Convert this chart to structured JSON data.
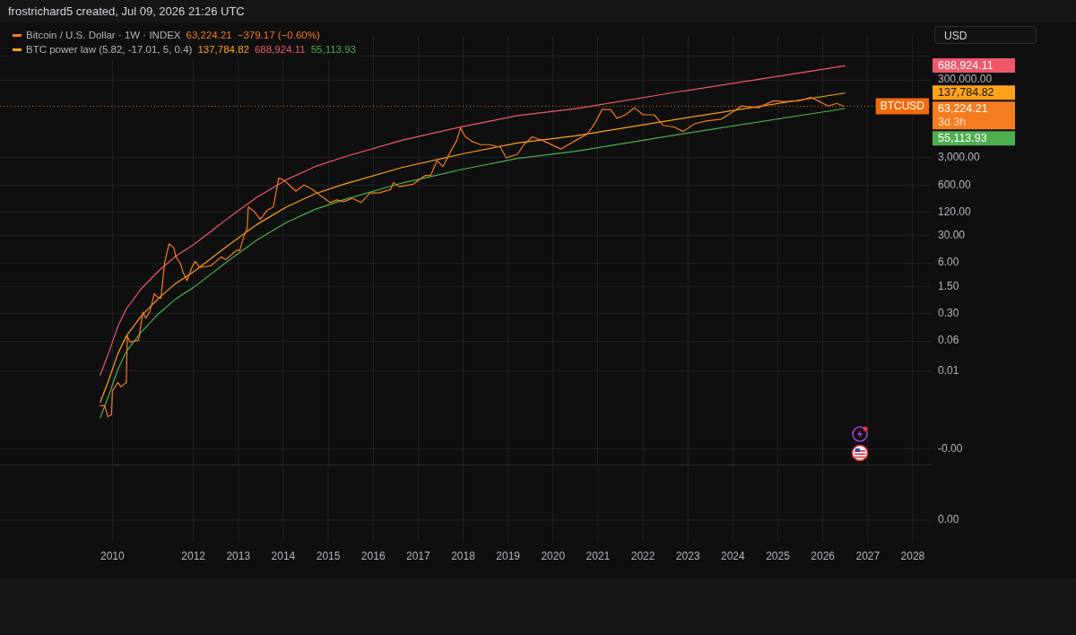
{
  "chart_data": {
    "type": "line",
    "log": "y",
    "grid": true,
    "legend": "top left",
    "marker": "none",
    "annotations": [
      "frostrichard5 created, Jul 09, 2026 21:26 UTC",
      "USD",
      "0.00",
      "−379.17 (−0.60%)",
      "3d 3h",
      "63,224.21",
      "137,784.82",
      "688,924.11",
      "55,113.93"
    ],
    "xlim": [
      2007.7,
      2028.4
    ],
    "xticks": [
      {
        "value": 2010.2,
        "label": "2010"
      },
      2012,
      2013,
      2014,
      2015,
      2016,
      2017,
      2018,
      2019,
      2020,
      2021,
      2022,
      2023,
      2024,
      2025,
      2026,
      2027,
      2028
    ],
    "ylim": [
      4e-05,
      4000000
    ],
    "yticks": [
      {
        "value": 0.0001,
        "label": "-0.00"
      },
      {
        "value": 0.01,
        "label": "0.01"
      },
      {
        "value": 0.06,
        "label": "0.06"
      },
      {
        "value": 0.3,
        "label": "0.30"
      },
      {
        "value": 1.5,
        "label": "1.50"
      },
      {
        "value": 6,
        "label": "6.00"
      },
      {
        "value": 30,
        "label": "30.00"
      },
      {
        "value": 120,
        "label": "120.00"
      },
      {
        "value": 600,
        "label": "600.00"
      },
      {
        "value": 3000,
        "label": "3,000.00"
      },
      {
        "value": 300000,
        "label": "300,000.00"
      },
      {
        "value": 1200000,
        "label": null
      }
    ],
    "ref_lines": [
      {
        "axis": "y",
        "value": 63224.21,
        "label": "BTCUSD",
        "color": "#f26b0f",
        "line_style": "dotted"
      }
    ],
    "series": [
      {
        "name": "Bitcoin / U.S. Dollar · 1W · INDEX",
        "color": "#f57c1f",
        "x": [
          2009.93,
          2010.03,
          2010.1,
          2010.18,
          2010.2,
          2010.32,
          2010.39,
          2010.51,
          2010.53,
          2010.59,
          2010.78,
          2010.88,
          2010.94,
          2011.03,
          2011.13,
          2011.23,
          2011.28,
          2011.36,
          2011.46,
          2011.57,
          2011.61,
          2011.71,
          2011.77,
          2011.86,
          2011.96,
          2012.04,
          2012.14,
          2012.39,
          2012.62,
          2012.72,
          2012.97,
          2013.03,
          2013.12,
          2013.2,
          2013.22,
          2013.35,
          2013.49,
          2013.64,
          2013.78,
          2013.9,
          2014.03,
          2014.13,
          2014.28,
          2014.46,
          2014.65,
          2014.77,
          2015.04,
          2015.19,
          2015.35,
          2015.54,
          2015.73,
          2015.93,
          2016.12,
          2016.39,
          2016.45,
          2016.58,
          2016.89,
          2017.16,
          2017.28,
          2017.42,
          2017.55,
          2017.74,
          2017.86,
          2017.94,
          2018.05,
          2018.19,
          2018.38,
          2018.58,
          2018.83,
          2018.96,
          2019.21,
          2019.35,
          2019.54,
          2019.8,
          2020.17,
          2020.51,
          2020.76,
          2020.94,
          2021.09,
          2021.28,
          2021.42,
          2021.61,
          2021.81,
          2022.0,
          2022.25,
          2022.45,
          2022.7,
          2022.89,
          2023.16,
          2023.41,
          2023.74,
          2023.99,
          2024.19,
          2024.57,
          2024.9,
          2025.15,
          2025.48,
          2025.73,
          2025.93,
          2026.12,
          2026.31,
          2026.47
        ],
        "values": [
          0.0013,
          0.0013,
          0.00068,
          0.00076,
          0.0031,
          0.0051,
          0.004,
          0.0051,
          0.08,
          0.056,
          0.062,
          0.33,
          0.23,
          0.33,
          0.97,
          0.75,
          0.75,
          5.9,
          18.6,
          14.4,
          8.6,
          5.9,
          3.5,
          2.1,
          4.4,
          6.6,
          4.6,
          5.1,
          8.6,
          7.3,
          12.9,
          12.3,
          28,
          47,
          164,
          127,
          79,
          134,
          164,
          910,
          780,
          600,
          420,
          600,
          460,
          360,
          213,
          249,
          224,
          276,
          213,
          377,
          377,
          460,
          700,
          542,
          632,
          1060,
          1060,
          2560,
          1790,
          4780,
          8460,
          17500,
          10400,
          8040,
          6530,
          6530,
          5590,
          3000,
          3690,
          6530,
          10400,
          8040,
          5040,
          8460,
          12200,
          23900,
          52000,
          52000,
          31000,
          38100,
          57700,
          38100,
          38100,
          20400,
          18400,
          14200,
          22700,
          26500,
          29400,
          44500,
          64000,
          57700,
          87300,
          82800,
          87300,
          107000,
          82800,
          64000,
          74700,
          63224.21
        ]
      },
      {
        "name": "BTC power law (5.82, -17.01, 5, 0.4)",
        "color": "#ffa21a",
        "x": [
          2009.93,
          2010.12,
          2010.32,
          2010.51,
          2010.84,
          2011.23,
          2011.61,
          2012.0,
          2012.77,
          2013.41,
          2014.07,
          2014.71,
          2015.35,
          2016.64,
          2017.94,
          2019.21,
          2020.51,
          2022.77,
          2026.49
        ],
        "values": [
          0.0016,
          0.006,
          0.028,
          0.08,
          0.26,
          0.75,
          1.8,
          3.5,
          16.8,
          58,
          164,
          358,
          632,
          1690,
          3690,
          7240,
          11000,
          29400,
          137784.82
        ]
      },
      {
        "color": "#f0586a",
        "x": [
          2009.93,
          2010.12,
          2010.32,
          2010.51,
          2010.84,
          2011.23,
          2011.61,
          2012.0,
          2012.77,
          2013.41,
          2014.07,
          2014.71,
          2015.35,
          2016.64,
          2017.94,
          2019.21,
          2020.51,
          2022.77,
          2026.49
        ],
        "values": [
          0.008,
          0.03,
          0.14,
          0.4,
          1.3,
          3.75,
          9,
          17.5,
          84,
          290,
          820,
          1790,
          3160,
          8450,
          18450,
          36200,
          55000,
          147000,
          688924.11
        ]
      },
      {
        "color": "#4caf50",
        "x": [
          2009.93,
          2010.12,
          2010.32,
          2010.51,
          2010.84,
          2011.23,
          2011.61,
          2012.0,
          2012.77,
          2013.41,
          2014.07,
          2014.71,
          2015.35,
          2016.64,
          2017.94,
          2019.21,
          2020.51,
          2022.77,
          2026.49
        ],
        "values": [
          0.00064,
          0.0024,
          0.011,
          0.032,
          0.1,
          0.3,
          0.72,
          1.4,
          6.7,
          23,
          66,
          143,
          253,
          676,
          1480,
          2900,
          4400,
          11800,
          55113.93
        ]
      }
    ]
  }
}
